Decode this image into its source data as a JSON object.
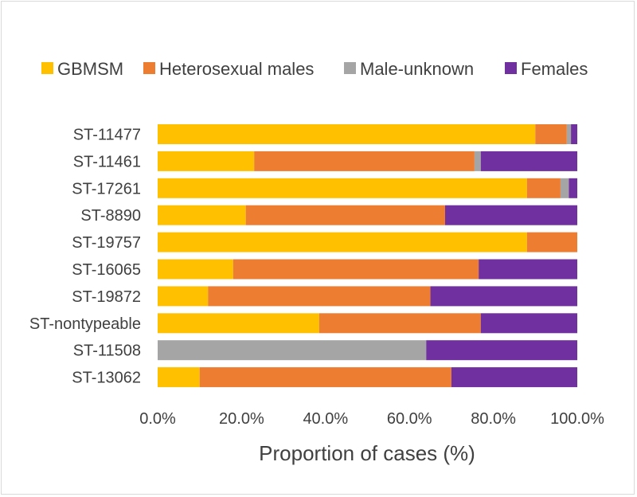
{
  "chart_data": {
    "type": "bar",
    "orientation": "horizontal",
    "stacked": true,
    "title": "",
    "xlabel": "Proportion of cases (%)",
    "ylabel": "",
    "xlim": [
      0,
      100
    ],
    "x_ticks": [
      "0.0%",
      "20.0%",
      "40.0%",
      "60.0%",
      "80.0%",
      "100.0%"
    ],
    "legend_position": "top",
    "categories": [
      "ST-11477",
      "ST-11461",
      "ST-17261",
      "ST-8890",
      "ST-19757",
      "ST-16065",
      "ST-19872",
      "ST-nontypeable",
      "ST-11508",
      "ST-13062"
    ],
    "series": [
      {
        "name": "GBMSM",
        "color": "#FFC000",
        "values": [
          90,
          23,
          88,
          21,
          88,
          18,
          12,
          38.5,
          0,
          10
        ]
      },
      {
        "name": "Heterosexual males",
        "color": "#ED7D31",
        "values": [
          7.5,
          52.5,
          8,
          47.5,
          12,
          58.5,
          53,
          38.5,
          0,
          60
        ]
      },
      {
        "name": "Male-unknown",
        "color": "#A5A5A5",
        "values": [
          1,
          1.5,
          2,
          0,
          0,
          0,
          0,
          0,
          64,
          0
        ]
      },
      {
        "name": "Females",
        "color": "#7030A0",
        "values": [
          1.5,
          23,
          2,
          31.5,
          0,
          23.5,
          35,
          23,
          36,
          30
        ]
      }
    ]
  }
}
